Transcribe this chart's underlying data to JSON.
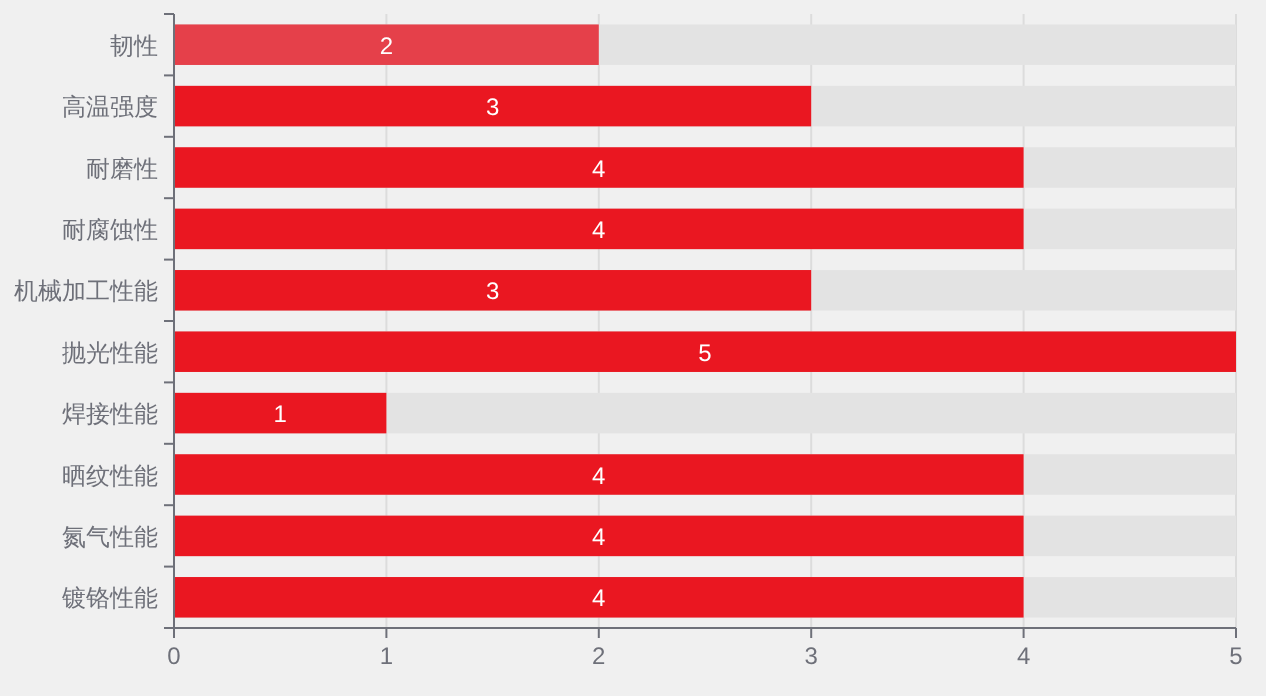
{
  "chart_data": {
    "type": "bar",
    "orientation": "horizontal",
    "categories": [
      "韧性",
      "高温强度",
      "耐磨性",
      "耐腐蚀性",
      "机械加工性能",
      "抛光性能",
      "焊接性能",
      "晒纹性能",
      "氮气性能",
      "镀铬性能"
    ],
    "values": [
      2,
      3,
      4,
      4,
      3,
      5,
      1,
      4,
      4,
      4
    ],
    "colors": [
      "#e5404a",
      "#ea1721",
      "#ea1721",
      "#ea1721",
      "#ea1721",
      "#ea1721",
      "#ea1721",
      "#ea1721",
      "#ea1721",
      "#ea1721"
    ],
    "xlim": [
      0,
      5
    ],
    "xticks": [
      0,
      1,
      2,
      3,
      4,
      5
    ],
    "grid": "x",
    "data_labels": true
  }
}
